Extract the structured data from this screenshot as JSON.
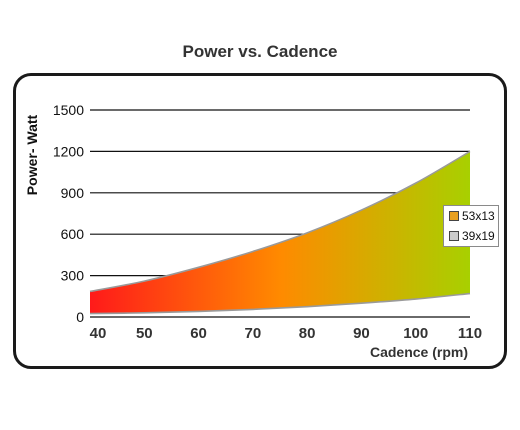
{
  "chart_data": {
    "type": "area",
    "title": "Power vs. Cadence",
    "xlabel": "Cadence (rpm)",
    "ylabel": "Power- Watt",
    "x_ticks": [
      "40",
      "50",
      "60",
      "70",
      "80",
      "90",
      "100",
      "110"
    ],
    "y_ticks": [
      "0",
      "300",
      "600",
      "900",
      "1200",
      "1500"
    ],
    "xlim": [
      40,
      110
    ],
    "ylim": [
      0,
      1500
    ],
    "grid": "horizontal",
    "legend": "right",
    "x": [
      40,
      50,
      60,
      70,
      80,
      90,
      100,
      110
    ],
    "series": [
      {
        "name": "53x13",
        "color": "#e8a020",
        "values": [
          185,
          260,
          360,
          475,
          610,
          775,
          970,
          1200
        ]
      },
      {
        "name": "39x19",
        "color": "#cccccc",
        "values": [
          25,
          30,
          40,
          55,
          75,
          100,
          130,
          170
        ]
      }
    ],
    "fill_colors": {
      "low": "#ff1a1a",
      "mid": "#ff8a00",
      "high": "#a8d000"
    }
  }
}
